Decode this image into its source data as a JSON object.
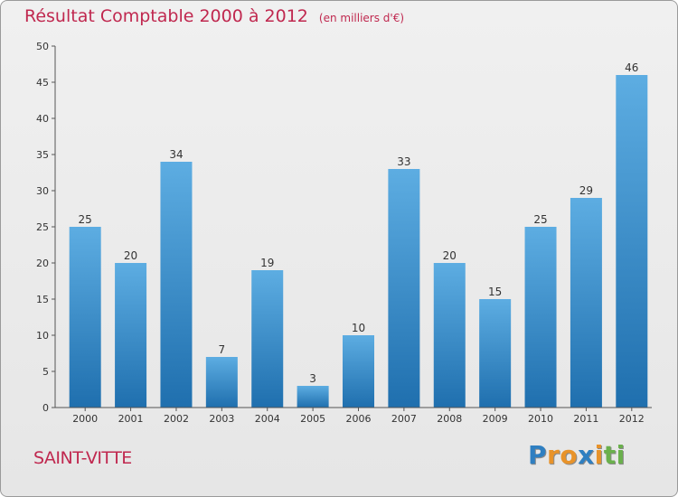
{
  "header": {
    "title": "Résultat Comptable 2000 à 2012",
    "unit": "(en milliers d'€)"
  },
  "commune": "SAINT-VITTE",
  "brand": {
    "letters": [
      "P",
      "r",
      "o",
      "x",
      "i",
      "t",
      "i"
    ],
    "colors": [
      "#2f7fc1",
      "#e8932a",
      "#e8932a",
      "#2f7fc1",
      "#e8932a",
      "#6ab04c",
      "#6ab04c"
    ]
  },
  "chart_data": {
    "type": "bar",
    "title": "Résultat Comptable 2000 à 2012",
    "xlabel": "",
    "ylabel": "(en milliers d'€)",
    "categories": [
      "2000",
      "2001",
      "2002",
      "2003",
      "2004",
      "2005",
      "2006",
      "2007",
      "2008",
      "2009",
      "2010",
      "2011",
      "2012"
    ],
    "values": [
      25,
      20,
      34,
      7,
      19,
      3,
      10,
      33,
      20,
      15,
      25,
      29,
      46
    ],
    "ylim": [
      0,
      50
    ],
    "yticks": [
      0,
      5,
      10,
      15,
      20,
      25,
      30,
      35,
      40,
      45,
      50
    ],
    "grid": false,
    "colors": {
      "bar_top": "#5dade2",
      "bar_bottom": "#1f6fae",
      "axis": "#555555",
      "text": "#333333"
    }
  }
}
